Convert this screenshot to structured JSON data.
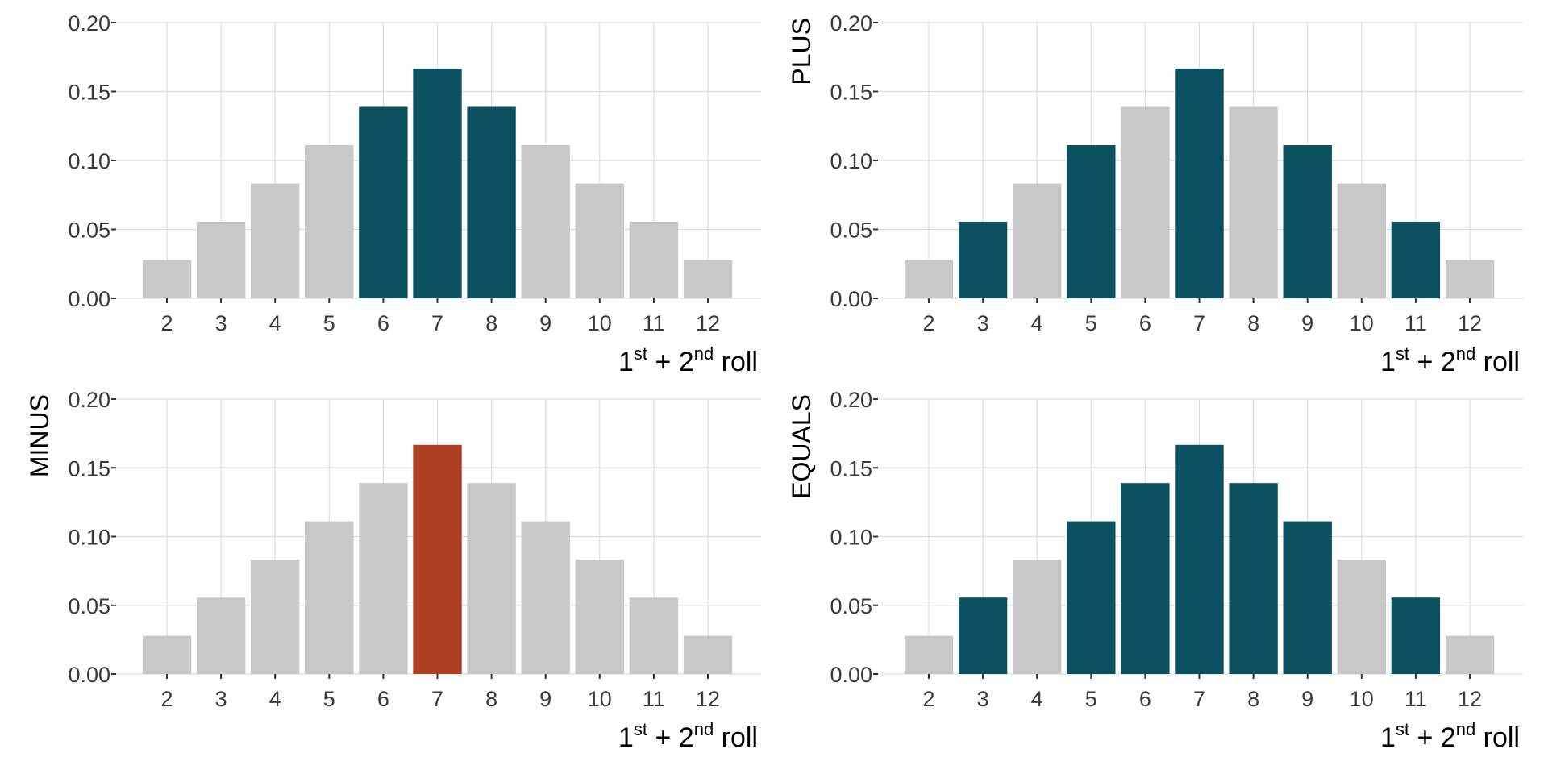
{
  "colors": {
    "highlight": "#0b5160",
    "highlight_red": "#ae3f22",
    "base": "#c8c8c8",
    "grid": "#dcdcdc"
  },
  "chart_data": [
    {
      "type": "bar",
      "panel": "top-left",
      "ylabel": "",
      "xlabel_parts": [
        "1",
        "st",
        " + 2",
        "nd",
        " roll"
      ],
      "categories": [
        "2",
        "3",
        "4",
        "5",
        "6",
        "7",
        "8",
        "9",
        "10",
        "11",
        "12"
      ],
      "values": [
        0.0278,
        0.0556,
        0.0833,
        0.1111,
        0.1389,
        0.1667,
        0.1389,
        0.1111,
        0.0833,
        0.0556,
        0.0278
      ],
      "highlighted": [
        "6",
        "7",
        "8"
      ],
      "highlight_color": "highlight",
      "ylim": [
        0,
        0.2
      ],
      "yticks": [
        "0.00",
        "0.05",
        "0.10",
        "0.15",
        "0.20"
      ],
      "grid": true
    },
    {
      "type": "bar",
      "panel": "top-right",
      "ylabel": "PLUS",
      "xlabel_parts": [
        "1",
        "st",
        " + 2",
        "nd",
        " roll"
      ],
      "categories": [
        "2",
        "3",
        "4",
        "5",
        "6",
        "7",
        "8",
        "9",
        "10",
        "11",
        "12"
      ],
      "values": [
        0.0278,
        0.0556,
        0.0833,
        0.1111,
        0.1389,
        0.1667,
        0.1389,
        0.1111,
        0.0833,
        0.0556,
        0.0278
      ],
      "highlighted": [
        "3",
        "5",
        "7",
        "9",
        "11"
      ],
      "highlight_color": "highlight",
      "ylim": [
        0,
        0.2
      ],
      "yticks": [
        "0.00",
        "0.05",
        "0.10",
        "0.15",
        "0.20"
      ],
      "grid": true
    },
    {
      "type": "bar",
      "panel": "bottom-left",
      "ylabel": "MINUS",
      "xlabel_parts": [
        "1",
        "st",
        " + 2",
        "nd",
        " roll"
      ],
      "categories": [
        "2",
        "3",
        "4",
        "5",
        "6",
        "7",
        "8",
        "9",
        "10",
        "11",
        "12"
      ],
      "values": [
        0.0278,
        0.0556,
        0.0833,
        0.1111,
        0.1389,
        0.1667,
        0.1389,
        0.1111,
        0.0833,
        0.0556,
        0.0278
      ],
      "highlighted": [
        "7"
      ],
      "highlight_color": "highlight_red",
      "ylim": [
        0,
        0.2
      ],
      "yticks": [
        "0.00",
        "0.05",
        "0.10",
        "0.15",
        "0.20"
      ],
      "grid": true
    },
    {
      "type": "bar",
      "panel": "bottom-right",
      "ylabel": "EQUALS",
      "xlabel_parts": [
        "1",
        "st",
        " + 2",
        "nd",
        " roll"
      ],
      "categories": [
        "2",
        "3",
        "4",
        "5",
        "6",
        "7",
        "8",
        "9",
        "10",
        "11",
        "12"
      ],
      "values": [
        0.0278,
        0.0556,
        0.0833,
        0.1111,
        0.1389,
        0.1667,
        0.1389,
        0.1111,
        0.0833,
        0.0556,
        0.0278
      ],
      "highlighted": [
        "3",
        "5",
        "6",
        "7",
        "8",
        "9",
        "11"
      ],
      "highlight_color": "highlight",
      "ylim": [
        0,
        0.2
      ],
      "yticks": [
        "0.00",
        "0.05",
        "0.10",
        "0.15",
        "0.20"
      ],
      "grid": true
    }
  ]
}
